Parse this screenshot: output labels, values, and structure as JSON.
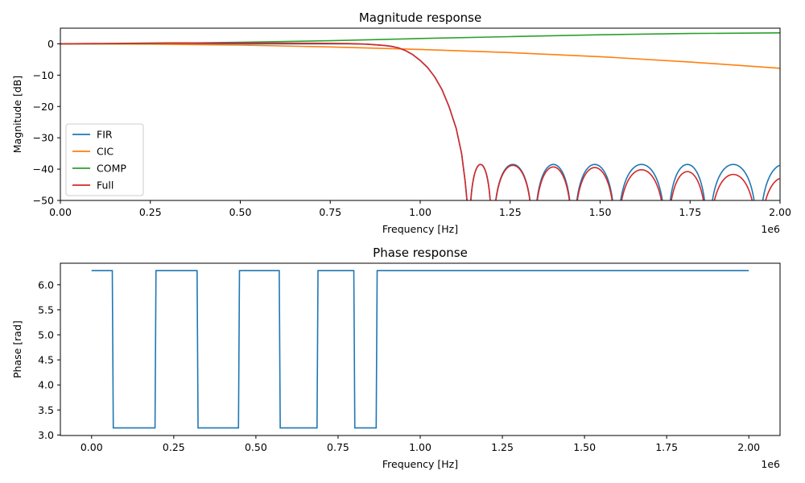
{
  "chart_data": [
    {
      "type": "line",
      "title": "Magnitude response",
      "xlabel": "Frequency [Hz]",
      "ylabel": "Magnitude [dB]",
      "x_offset_text": "1e6",
      "xlim": [
        0,
        2000000
      ],
      "ylim": [
        -50,
        5
      ],
      "x_ticks": [
        0,
        250000,
        500000,
        750000,
        1000000,
        1250000,
        1500000,
        1750000,
        2000000
      ],
      "x_tick_labels": [
        "0.00",
        "0.25",
        "0.50",
        "0.75",
        "1.00",
        "1.25",
        "1.50",
        "1.75",
        "2.00"
      ],
      "y_ticks": [
        0,
        -10,
        -20,
        -30,
        -40,
        -50
      ],
      "y_tick_labels": [
        "0",
        "−10",
        "−20",
        "−30",
        "−40",
        "−50"
      ],
      "grid": false,
      "legend_position": "lower-left",
      "series": [
        {
          "name": "FIR",
          "color": "#1f77b4",
          "points": [
            [
              0,
              0
            ],
            [
              100000,
              0
            ],
            [
              200000,
              0
            ],
            [
              300000,
              0
            ],
            [
              400000,
              0
            ],
            [
              500000,
              0
            ],
            [
              600000,
              0
            ],
            [
              700000,
              0
            ],
            [
              800000,
              0
            ],
            [
              850000,
              -0.1
            ],
            [
              900000,
              -0.5
            ],
            [
              920000,
              -0.8
            ],
            [
              940000,
              -1.3
            ],
            [
              960000,
              -2.2
            ],
            [
              980000,
              -3.5
            ],
            [
              1000000,
              -5.3
            ],
            [
              1020000,
              -7.5
            ],
            [
              1040000,
              -10.5
            ],
            [
              1060000,
              -14.5
            ],
            [
              1080000,
              -20
            ],
            [
              1100000,
              -27
            ],
            [
              1115000,
              -35
            ],
            [
              1125000,
              -44
            ],
            [
              1130000,
              -50
            ]
          ],
          "lobe_peak": -38.5
        },
        {
          "name": "CIC",
          "color": "#ff7f0e",
          "points": [
            [
              0,
              0
            ],
            [
              250000,
              -0.1
            ],
            [
              500000,
              -0.4
            ],
            [
              750000,
              -1.0
            ],
            [
              1000000,
              -1.8
            ],
            [
              1250000,
              -2.8
            ],
            [
              1500000,
              -4.1
            ],
            [
              1750000,
              -5.8
            ],
            [
              2000000,
              -7.8
            ]
          ]
        },
        {
          "name": "COMP",
          "color": "#2ca02c",
          "points": [
            [
              0,
              0
            ],
            [
              250000,
              0.1
            ],
            [
              500000,
              0.5
            ],
            [
              750000,
              1.0
            ],
            [
              1000000,
              1.7
            ],
            [
              1250000,
              2.3
            ],
            [
              1500000,
              2.9
            ],
            [
              1750000,
              3.3
            ],
            [
              2000000,
              3.5
            ]
          ]
        },
        {
          "name": "Full",
          "color": "#d62728",
          "points": [
            [
              0,
              0
            ],
            [
              100000,
              0.1
            ],
            [
              300000,
              0.3
            ],
            [
              500000,
              0.3
            ],
            [
              700000,
              0.2
            ],
            [
              800000,
              0.1
            ],
            [
              850000,
              -0.1
            ],
            [
              900000,
              -0.5
            ],
            [
              920000,
              -0.8
            ],
            [
              940000,
              -1.3
            ],
            [
              960000,
              -2.2
            ],
            [
              980000,
              -3.5
            ],
            [
              1000000,
              -5.3
            ],
            [
              1020000,
              -7.5
            ],
            [
              1040000,
              -10.5
            ],
            [
              1060000,
              -14.5
            ],
            [
              1080000,
              -20
            ],
            [
              1100000,
              -27
            ],
            [
              1115000,
              -35
            ],
            [
              1125000,
              -44
            ],
            [
              1130000,
              -50
            ]
          ],
          "lobe_peaks": [
            -38.5,
            -38.8,
            -39.3,
            -39.5,
            -40.2,
            -40.8,
            -41.7,
            -42.7
          ]
        }
      ],
      "stopband_zeros": [
        1135000,
        1200000,
        1315000,
        1425000,
        1545000,
        1685000,
        1800000,
        1940000
      ]
    },
    {
      "type": "line",
      "title": "Phase response",
      "xlabel": "Frequency [Hz]",
      "ylabel": "Phase [rad]",
      "x_offset_text": "1e6",
      "xlim": [
        -95000,
        2095000
      ],
      "ylim": [
        2.99,
        6.43
      ],
      "x_ticks": [
        0,
        250000,
        500000,
        750000,
        1000000,
        1250000,
        1500000,
        1750000,
        2000000
      ],
      "x_tick_labels": [
        "0.00",
        "0.25",
        "0.50",
        "0.75",
        "1.00",
        "1.25",
        "1.50",
        "1.75",
        "2.00"
      ],
      "y_ticks": [
        3.0,
        3.5,
        4.0,
        4.5,
        5.0,
        5.5,
        6.0
      ],
      "y_tick_labels": [
        "3.0",
        "3.5",
        "4.0",
        "4.5",
        "5.0",
        "5.5",
        "6.0"
      ],
      "grid": false,
      "series": [
        {
          "color": "#1f77b4",
          "points": [
            [
              0,
              6.283
            ],
            [
              63000,
              6.283
            ],
            [
              66000,
              3.1416
            ],
            [
              193000,
              3.1416
            ],
            [
              196000,
              6.283
            ],
            [
              321000,
              6.283
            ],
            [
              324000,
              3.1416
            ],
            [
              447000,
              3.1416
            ],
            [
              450000,
              6.283
            ],
            [
              571000,
              6.283
            ],
            [
              574000,
              3.1416
            ],
            [
              686000,
              3.1416
            ],
            [
              689000,
              6.283
            ],
            [
              798000,
              6.283
            ],
            [
              801000,
              3.1416
            ],
            [
              866000,
              3.1416
            ],
            [
              869000,
              6.283
            ],
            [
              2000000,
              6.283
            ]
          ]
        }
      ]
    }
  ]
}
